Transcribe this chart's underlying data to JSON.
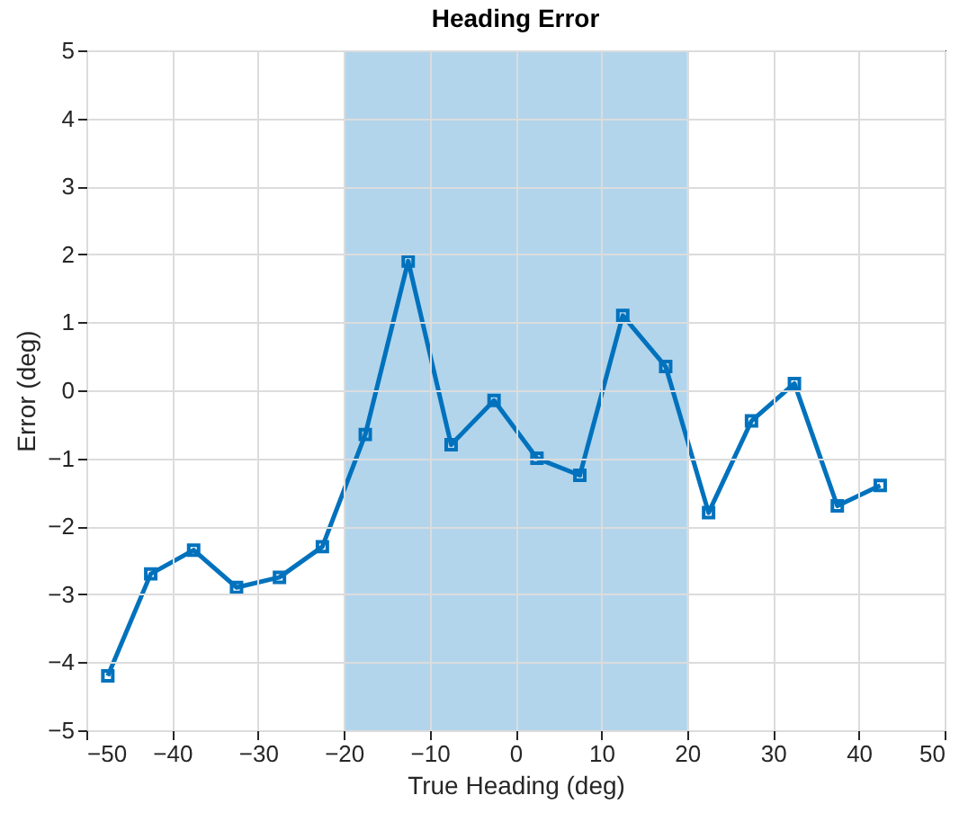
{
  "chart_data": {
    "type": "line",
    "title": "Heading Error",
    "xlabel": "True Heading (deg)",
    "ylabel": "Error (deg)",
    "x": [
      -47.5,
      -42.5,
      -37.5,
      -32.5,
      -27.5,
      -22.5,
      -17.5,
      -12.5,
      -7.5,
      -2.5,
      2.5,
      7.5,
      12.5,
      17.5,
      22.5,
      27.5,
      32.5,
      37.5,
      42.5
    ],
    "series": [
      {
        "color": "#0072bd",
        "values": [
          -4.2,
          -2.7,
          -2.35,
          -2.9,
          -2.75,
          -2.3,
          -0.65,
          1.9,
          -0.8,
          -0.15,
          -1.0,
          -1.25,
          1.1,
          0.35,
          -1.8,
          -0.45,
          0.1,
          -1.7,
          -1.4
        ]
      }
    ],
    "xlim": [
      -50,
      50
    ],
    "xticks": [
      -50,
      -40,
      -30,
      -20,
      -10,
      0,
      10,
      20,
      30,
      40,
      50
    ],
    "ylim": [
      -5,
      5
    ],
    "yticks": [
      -5,
      -4,
      -3,
      -2,
      -1,
      0,
      1,
      2,
      3,
      4,
      5
    ],
    "bands": [
      {
        "axis": "x",
        "from": -20,
        "to": 20,
        "color": "#b2d5ec"
      }
    ],
    "grid": true,
    "marker": "square",
    "line_style": "solid"
  }
}
